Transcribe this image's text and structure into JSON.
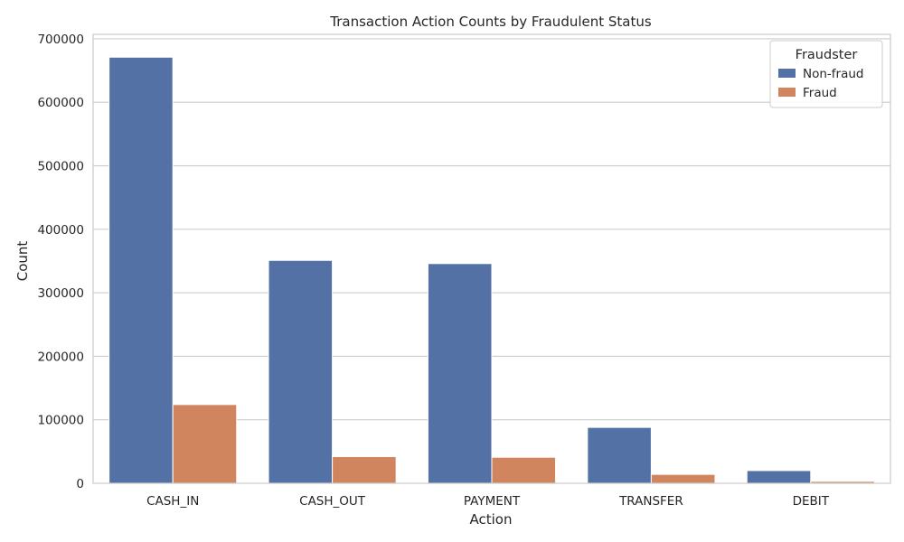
{
  "chart_data": {
    "type": "bar",
    "title": "Transaction Action Counts by Fraudulent Status",
    "xlabel": "Action",
    "ylabel": "Count",
    "categories": [
      "CASH_IN",
      "CASH_OUT",
      "PAYMENT",
      "TRANSFER",
      "DEBIT"
    ],
    "series": [
      {
        "name": "Non-fraud",
        "color": "#5471a5",
        "values": [
          671000,
          351000,
          346000,
          88000,
          20000
        ]
      },
      {
        "name": "Fraud",
        "color": "#d0855e",
        "values": [
          124000,
          42000,
          41000,
          14000,
          3000
        ]
      }
    ],
    "ylim": [
      0,
      707000
    ],
    "yticks": [
      0,
      100000,
      200000,
      300000,
      400000,
      500000,
      600000,
      700000
    ],
    "ytick_labels": [
      "0",
      "100000",
      "200000",
      "300000",
      "400000",
      "500000",
      "600000",
      "700000"
    ],
    "grid": true,
    "legend": {
      "title": "Fraudster",
      "placement": "top-right"
    }
  }
}
